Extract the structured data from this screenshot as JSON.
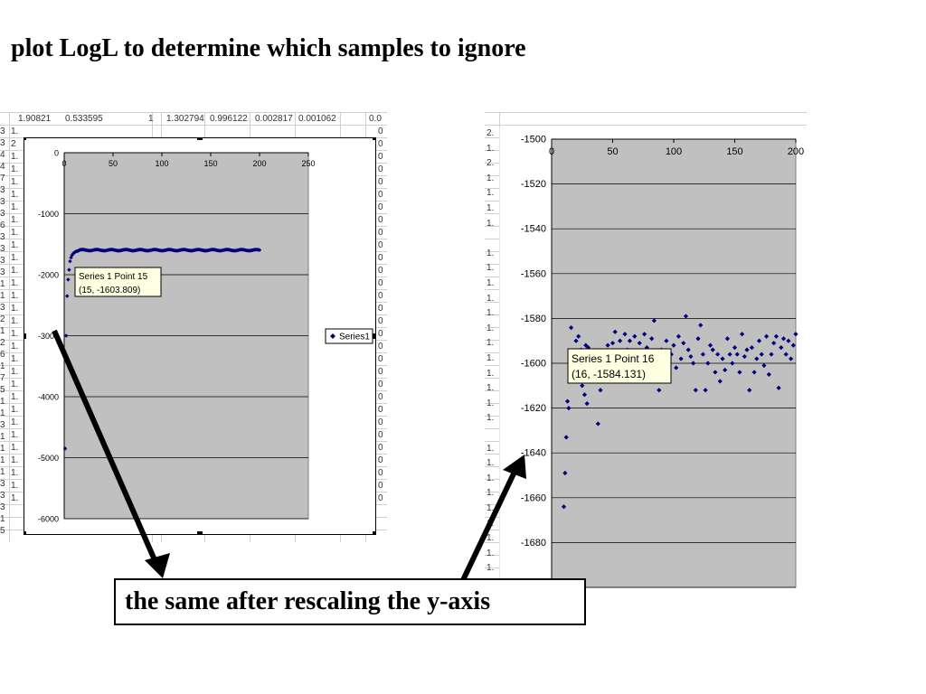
{
  "slide": {
    "title": "plot LogL to determine which samples to ignore",
    "caption": "the same after rescaling the y-axis"
  },
  "spreadsheet_left": {
    "header_values": [
      "1.90821",
      "0.533595",
      "1",
      "1.302794",
      "0.996122",
      "0.002817",
      "0.001062",
      "0.0"
    ],
    "row_stubs": [
      "3",
      "3",
      "4",
      "4",
      "7",
      "3",
      "3",
      "3",
      "6",
      "3",
      "3",
      "3",
      "3",
      "1",
      "1",
      "3",
      "2",
      "1",
      "2",
      "6",
      "1",
      "7",
      "5",
      "1",
      "1",
      "3",
      "1",
      "1",
      "1",
      "1",
      "3",
      "3",
      "3",
      "1",
      "5"
    ],
    "left_col": [
      "1.",
      "2",
      "1.",
      "1.",
      "1.",
      "1.",
      "1.",
      "1.",
      "1.",
      "1.",
      "1.",
      "1.",
      "1.",
      "1.",
      "1.",
      "1.",
      "1.",
      "1.",
      "1.",
      "1.",
      "1.",
      "1.",
      "1.",
      "1.",
      "1.",
      "1.",
      "1.",
      "1.",
      "1.",
      "1."
    ],
    "right_col": [
      "0",
      "0",
      "0",
      "0",
      "0",
      "0",
      "0",
      "0",
      "0",
      "0",
      "0",
      "0",
      "0",
      "0",
      "0",
      "0",
      "0",
      "0",
      "0",
      "0",
      "0",
      "0",
      "0",
      "0",
      "0",
      "0",
      "0",
      "0",
      "0",
      "0"
    ]
  },
  "spreadsheet_right": {
    "left_col": [
      "2.",
      "1.",
      "2.",
      "1.",
      "1.",
      "1.",
      "1.",
      "",
      "1.",
      "1.",
      "1.",
      "1.",
      "1.",
      "1.",
      "1.",
      "1.",
      "1.",
      "1.",
      "1.",
      "1.",
      "",
      "1.",
      "1.",
      "1.",
      "1.",
      "1.",
      "1.",
      "1.",
      "1.",
      "1.",
      "1."
    ]
  },
  "chart_data": [
    {
      "type": "scatter",
      "title": "",
      "xlabel": "",
      "ylabel": "",
      "xlim": [
        0,
        250
      ],
      "ylim": [
        -6000,
        0
      ],
      "xticks": [
        0,
        50,
        100,
        150,
        200,
        250
      ],
      "yticks": [
        0,
        -1000,
        -2000,
        -3000,
        -4000,
        -5000,
        -6000
      ],
      "x_axis_position": "top",
      "grid": true,
      "background": "#c0c0c0",
      "marker_color": "#000080",
      "legend": {
        "position": "right",
        "entries": [
          "Series1"
        ]
      },
      "tooltip": {
        "line1": "Series 1 Point 15",
        "line2": "(15, -1603.809)"
      },
      "series": [
        {
          "name": "Series1",
          "points": [
            [
              1,
              -4850
            ],
            [
              2,
              -3000
            ],
            [
              3,
              -2350
            ],
            [
              4,
              -2080
            ],
            [
              5,
              -1920
            ],
            [
              6,
              -1780
            ],
            [
              7,
              -1720
            ],
            [
              8,
              -1680
            ],
            [
              9,
              -1660
            ],
            [
              10,
              -1640
            ],
            [
              11,
              -1630
            ],
            [
              12,
              -1620
            ],
            [
              13,
              -1615
            ],
            [
              14,
              -1610
            ],
            [
              15,
              -1603.809
            ]
          ],
          "plateau": {
            "x_from": 16,
            "x_to": 200,
            "y_mean": -1597,
            "y_spread": 18
          }
        }
      ]
    },
    {
      "type": "scatter",
      "title": "",
      "xlabel": "",
      "ylabel": "",
      "xlim": [
        0,
        200
      ],
      "ylim": [
        -1700,
        -1500
      ],
      "xticks": [
        0,
        50,
        100,
        150,
        200
      ],
      "yticks": [
        -1500,
        -1520,
        -1540,
        -1560,
        -1580,
        -1600,
        -1620,
        -1640,
        -1660,
        -1680,
        -1700
      ],
      "x_axis_position": "top",
      "grid": true,
      "background": "#c0c0c0",
      "marker_color": "#000080",
      "tooltip": {
        "line1": "Series 1 Point 16",
        "line2": "(16, -1584.131)"
      },
      "series": [
        {
          "name": "Series1",
          "points": [
            [
              10,
              -1664
            ],
            [
              11,
              -1649
            ],
            [
              12,
              -1633
            ],
            [
              13,
              -1617
            ],
            [
              14,
              -1620
            ],
            [
              15,
              -1606
            ],
            [
              16,
              -1584.131
            ],
            [
              17,
              -1600
            ],
            [
              18,
              -1603
            ],
            [
              19,
              -1596
            ],
            [
              20,
              -1590
            ],
            [
              21,
              -1598
            ],
            [
              22,
              -1588
            ],
            [
              23,
              -1605
            ],
            [
              24,
              -1594
            ],
            [
              25,
              -1610
            ],
            [
              26,
              -1598
            ],
            [
              27,
              -1614
            ],
            [
              28,
              -1592
            ],
            [
              29,
              -1618
            ],
            [
              30,
              -1593
            ],
            [
              31,
              -1600
            ],
            [
              32,
              -1596
            ],
            [
              33,
              -1603
            ],
            [
              34,
              -1608
            ],
            [
              35,
              -1600
            ],
            [
              38,
              -1627
            ],
            [
              40,
              -1612
            ],
            [
              42,
              -1595
            ],
            [
              44,
              -1602
            ],
            [
              46,
              -1592
            ],
            [
              48,
              -1599
            ],
            [
              50,
              -1591
            ],
            [
              52,
              -1586
            ],
            [
              54,
              -1596
            ],
            [
              56,
              -1590
            ],
            [
              58,
              -1600
            ],
            [
              60,
              -1587
            ],
            [
              62,
              -1594
            ],
            [
              64,
              -1590
            ],
            [
              66,
              -1598
            ],
            [
              68,
              -1588
            ],
            [
              70,
              -1595
            ],
            [
              72,
              -1591
            ],
            [
              74,
              -1601
            ],
            [
              76,
              -1587
            ],
            [
              78,
              -1593
            ],
            [
              80,
              -1597
            ],
            [
              82,
              -1589
            ],
            [
              84,
              -1581
            ],
            [
              86,
              -1600
            ],
            [
              88,
              -1612
            ],
            [
              90,
              -1594
            ],
            [
              92,
              -1598
            ],
            [
              94,
              -1590
            ],
            [
              96,
              -1605
            ],
            [
              98,
              -1596
            ],
            [
              100,
              -1592
            ],
            [
              102,
              -1602
            ],
            [
              104,
              -1588
            ],
            [
              106,
              -1598
            ],
            [
              108,
              -1591
            ],
            [
              110,
              -1579
            ],
            [
              112,
              -1594
            ],
            [
              114,
              -1597
            ],
            [
              116,
              -1600
            ],
            [
              118,
              -1612
            ],
            [
              120,
              -1589
            ],
            [
              122,
              -1583
            ],
            [
              124,
              -1596
            ],
            [
              126,
              -1612
            ],
            [
              128,
              -1600
            ],
            [
              130,
              -1592
            ],
            [
              132,
              -1594
            ],
            [
              134,
              -1604
            ],
            [
              136,
              -1596
            ],
            [
              138,
              -1608
            ],
            [
              140,
              -1598
            ],
            [
              142,
              -1603
            ],
            [
              144,
              -1589
            ],
            [
              146,
              -1596
            ],
            [
              148,
              -1600
            ],
            [
              150,
              -1593
            ],
            [
              152,
              -1596
            ],
            [
              154,
              -1604
            ],
            [
              156,
              -1587
            ],
            [
              158,
              -1597
            ],
            [
              160,
              -1594
            ],
            [
              162,
              -1612
            ],
            [
              164,
              -1593
            ],
            [
              166,
              -1604
            ],
            [
              168,
              -1598
            ],
            [
              170,
              -1590
            ],
            [
              172,
              -1596
            ],
            [
              174,
              -1601
            ],
            [
              176,
              -1588
            ],
            [
              178,
              -1605
            ],
            [
              180,
              -1596
            ],
            [
              182,
              -1591
            ],
            [
              184,
              -1588
            ],
            [
              186,
              -1611
            ],
            [
              188,
              -1593
            ],
            [
              190,
              -1589
            ],
            [
              192,
              -1596
            ],
            [
              194,
              -1590
            ],
            [
              196,
              -1598
            ],
            [
              198,
              -1592
            ],
            [
              200,
              -1587
            ]
          ]
        }
      ]
    }
  ]
}
